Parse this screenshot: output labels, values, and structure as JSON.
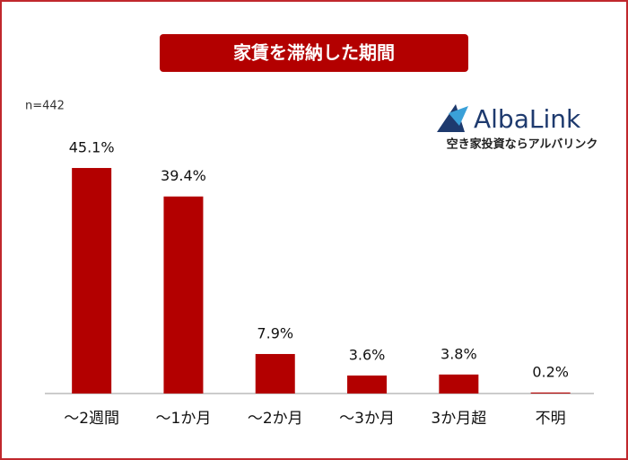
{
  "chart_data": {
    "type": "bar",
    "title": "家賃を滞納した期間",
    "note": "n=442",
    "categories": [
      "～2週間",
      "～1か月",
      "～2か月",
      "～3か月",
      "3か月超",
      "不明"
    ],
    "values": [
      45.1,
      39.4,
      7.9,
      3.6,
      3.8,
      0.2
    ],
    "value_labels": [
      "45.1%",
      "39.4%",
      "7.9%",
      "3.6%",
      "3.8%",
      "0.2%"
    ],
    "color": "#b30000"
  },
  "logo": {
    "name": "AlbaLink",
    "tagline": "空き家投資ならアルバリンク"
  }
}
